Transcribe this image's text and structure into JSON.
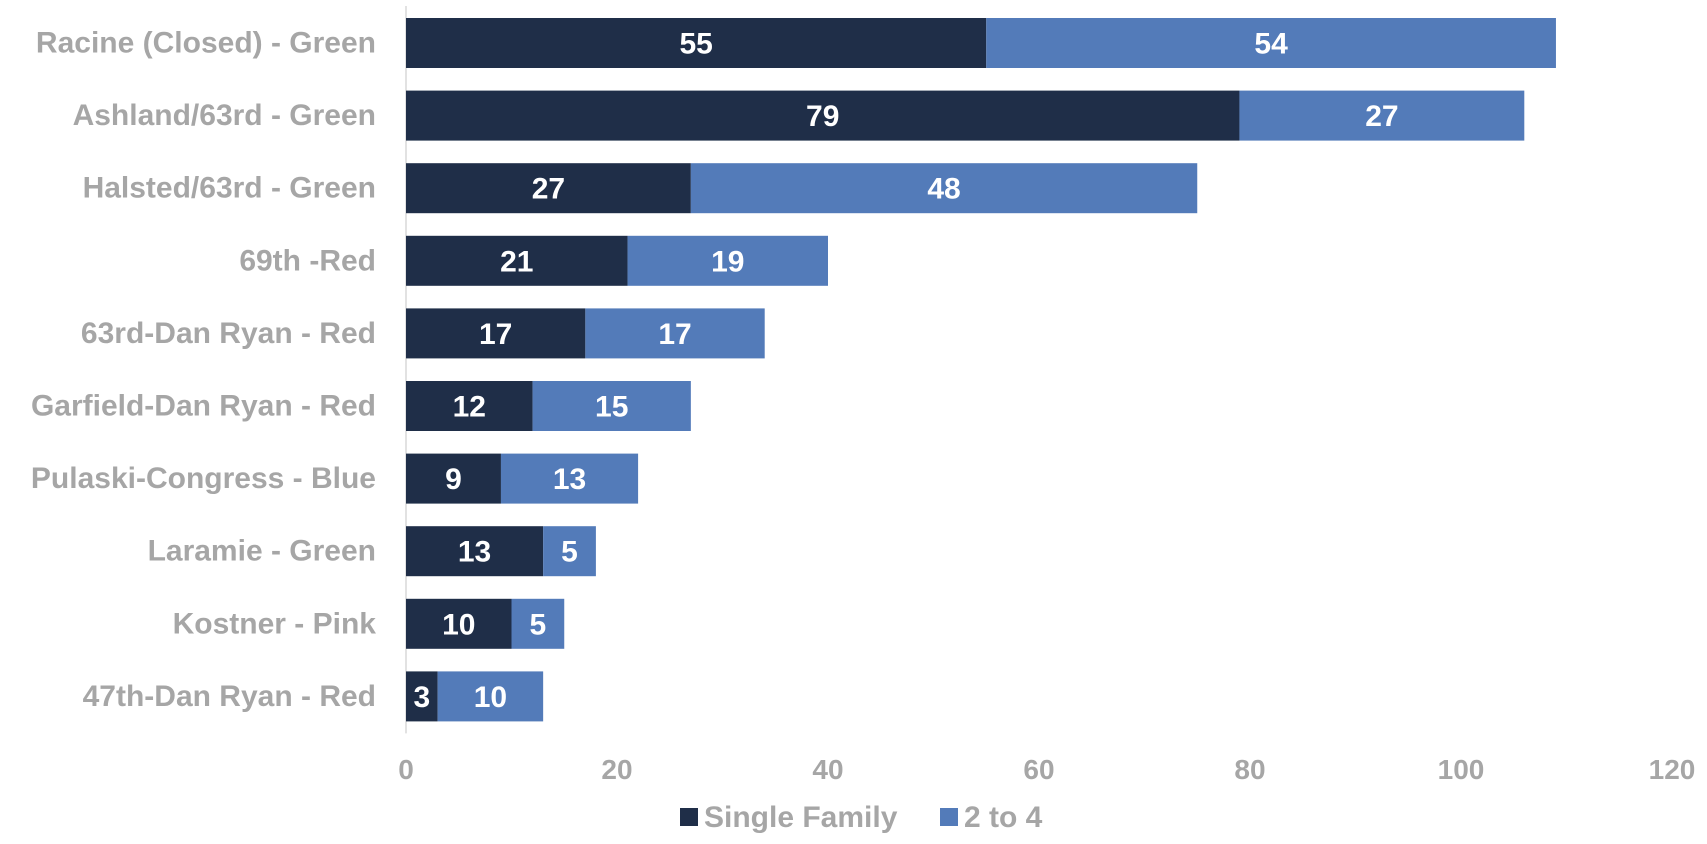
{
  "chart_data": {
    "type": "bar",
    "orientation": "horizontal",
    "stacked": true,
    "title": "",
    "xlabel": "",
    "ylabel": "",
    "categories": [
      "Racine (Closed) - Green",
      "Ashland/63rd - Green",
      "Halsted/63rd - Green",
      "69th -Red",
      "63rd-Dan Ryan - Red",
      "Garfield-Dan Ryan - Red",
      "Pulaski-Congress - Blue",
      "Laramie - Green",
      "Kostner - Pink",
      "47th-Dan Ryan - Red"
    ],
    "series": [
      {
        "name": "Single Family",
        "color": "#1f2e48",
        "values": [
          55,
          79,
          27,
          21,
          17,
          12,
          9,
          13,
          10,
          3
        ]
      },
      {
        "name": "2 to 4",
        "color": "#537bb9",
        "values": [
          54,
          27,
          48,
          19,
          17,
          15,
          13,
          5,
          5,
          10
        ]
      }
    ],
    "xlim": [
      0,
      120
    ],
    "xticks": [
      0,
      20,
      40,
      60,
      80,
      100,
      120
    ],
    "grid": false,
    "legend_position": "bottom"
  }
}
